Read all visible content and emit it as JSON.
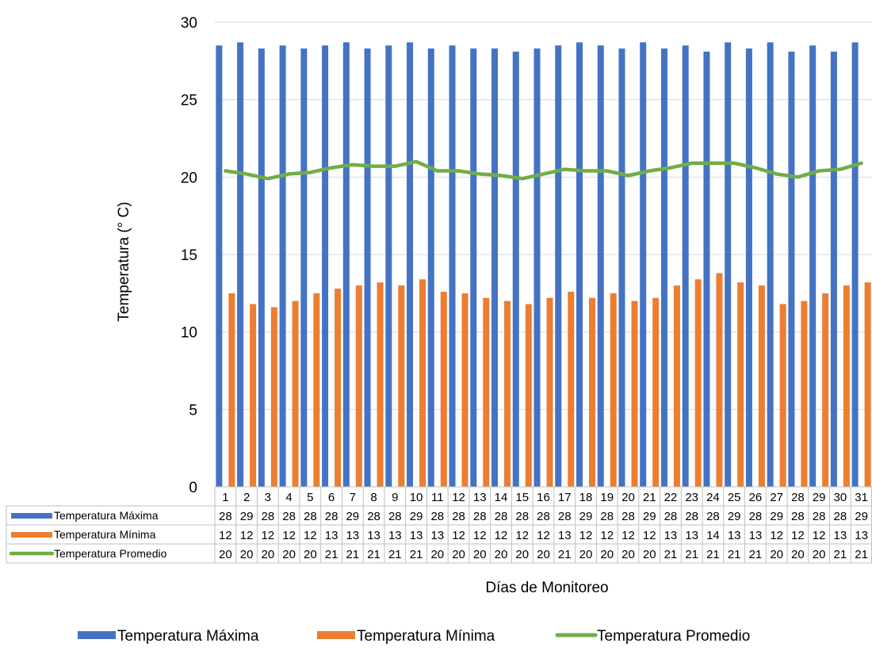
{
  "chart_data": {
    "type": "bar",
    "ylabel": "Temperatura (° C)",
    "xlabel": "Días de Monitoreo",
    "ylim": [
      0,
      30
    ],
    "yticks": [
      0,
      5,
      10,
      15,
      20,
      25,
      30
    ],
    "grid": true,
    "legend_position": "bottom",
    "has_data_table": true,
    "categories": [
      "1",
      "2",
      "3",
      "4",
      "5",
      "6",
      "7",
      "8",
      "9",
      "10",
      "11",
      "12",
      "13",
      "14",
      "15",
      "16",
      "17",
      "18",
      "19",
      "20",
      "21",
      "22",
      "23",
      "24",
      "25",
      "26",
      "27",
      "28",
      "29",
      "30",
      "31"
    ],
    "series": [
      {
        "name": "Temperatura Máxima",
        "kind": "bar",
        "color": "#4472C4",
        "values": [
          28.5,
          28.7,
          28.3,
          28.5,
          28.3,
          28.5,
          28.7,
          28.3,
          28.5,
          28.7,
          28.3,
          28.5,
          28.3,
          28.3,
          28.1,
          28.3,
          28.5,
          28.7,
          28.5,
          28.3,
          28.7,
          28.3,
          28.5,
          28.1,
          28.7,
          28.3,
          28.7,
          28.1,
          28.5,
          28.1,
          28.7
        ],
        "table_values": [
          "28",
          "29",
          "28",
          "28",
          "28",
          "28",
          "29",
          "28",
          "28",
          "29",
          "28",
          "28",
          "28",
          "28",
          "28",
          "28",
          "28",
          "29",
          "28",
          "28",
          "29",
          "28",
          "28",
          "28",
          "29",
          "28",
          "29",
          "28",
          "28",
          "28",
          "29"
        ]
      },
      {
        "name": "Temperatura Mínima",
        "kind": "bar",
        "color": "#ED7D31",
        "values": [
          12.5,
          11.8,
          11.6,
          12.0,
          12.5,
          12.8,
          13.0,
          13.2,
          13.0,
          13.4,
          12.6,
          12.5,
          12.2,
          12.0,
          11.8,
          12.2,
          12.6,
          12.2,
          12.5,
          12.0,
          12.2,
          13.0,
          13.4,
          13.8,
          13.2,
          13.0,
          11.8,
          12.0,
          12.5,
          13.0,
          13.2
        ],
        "table_values": [
          "12",
          "12",
          "12",
          "12",
          "12",
          "13",
          "13",
          "13",
          "13",
          "13",
          "13",
          "12",
          "12",
          "12",
          "12",
          "12",
          "13",
          "12",
          "12",
          "12",
          "12",
          "13",
          "13",
          "14",
          "13",
          "13",
          "12",
          "12",
          "12",
          "13",
          "13"
        ]
      },
      {
        "name": "Temperatura Promedio",
        "kind": "line",
        "color": "#70AD47",
        "values": [
          20.4,
          20.2,
          19.9,
          20.2,
          20.3,
          20.6,
          20.8,
          20.7,
          20.7,
          21.0,
          20.4,
          20.4,
          20.2,
          20.1,
          19.9,
          20.2,
          20.5,
          20.4,
          20.4,
          20.1,
          20.4,
          20.6,
          20.9,
          20.9,
          20.9,
          20.6,
          20.2,
          20.0,
          20.4,
          20.5,
          20.9
        ],
        "table_values": [
          "20",
          "20",
          "20",
          "20",
          "20",
          "21",
          "21",
          "21",
          "21",
          "21",
          "20",
          "20",
          "20",
          "20",
          "20",
          "20",
          "21",
          "20",
          "20",
          "20",
          "20",
          "21",
          "21",
          "21",
          "21",
          "21",
          "20",
          "20",
          "20",
          "21",
          "21"
        ]
      }
    ]
  }
}
